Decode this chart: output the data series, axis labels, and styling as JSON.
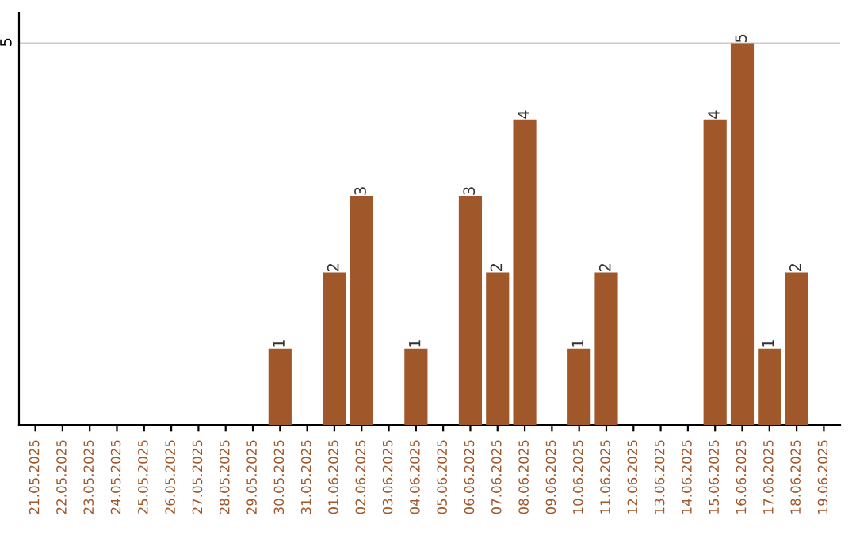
{
  "chart_data": {
    "type": "bar",
    "categories": [
      "21.05.2025",
      "22.05.2025",
      "23.05.2025",
      "24.05.2025",
      "25.05.2025",
      "26.05.2025",
      "27.05.2025",
      "28.05.2025",
      "29.05.2025",
      "30.05.2025",
      "31.05.2025",
      "01.06.2025",
      "02.06.2025",
      "03.06.2025",
      "04.06.2025",
      "05.06.2025",
      "06.06.2025",
      "07.06.2025",
      "08.06.2025",
      "09.06.2025",
      "10.06.2025",
      "11.06.2025",
      "12.06.2025",
      "13.06.2025",
      "14.06.2025",
      "15.06.2025",
      "16.06.2025",
      "17.06.2025",
      "18.06.2025",
      "19.06.2025"
    ],
    "values": [
      0,
      0,
      0,
      0,
      0,
      0,
      0,
      0,
      0,
      1,
      0,
      2,
      3,
      0,
      1,
      0,
      3,
      2,
      4,
      0,
      1,
      2,
      0,
      0,
      0,
      4,
      5,
      1,
      2,
      0
    ],
    "value_labels": [
      null,
      null,
      null,
      null,
      null,
      null,
      null,
      null,
      null,
      "1",
      null,
      "2",
      "3",
      null,
      "1",
      null,
      "3",
      "2",
      "4",
      null,
      "1",
      "2",
      null,
      null,
      null,
      "4",
      "5",
      "1",
      "2",
      null
    ],
    "color": "#a0572a",
    "ylim": [
      0,
      5.4
    ],
    "yticks": [
      5
    ],
    "grid": "y",
    "legend": false
  }
}
